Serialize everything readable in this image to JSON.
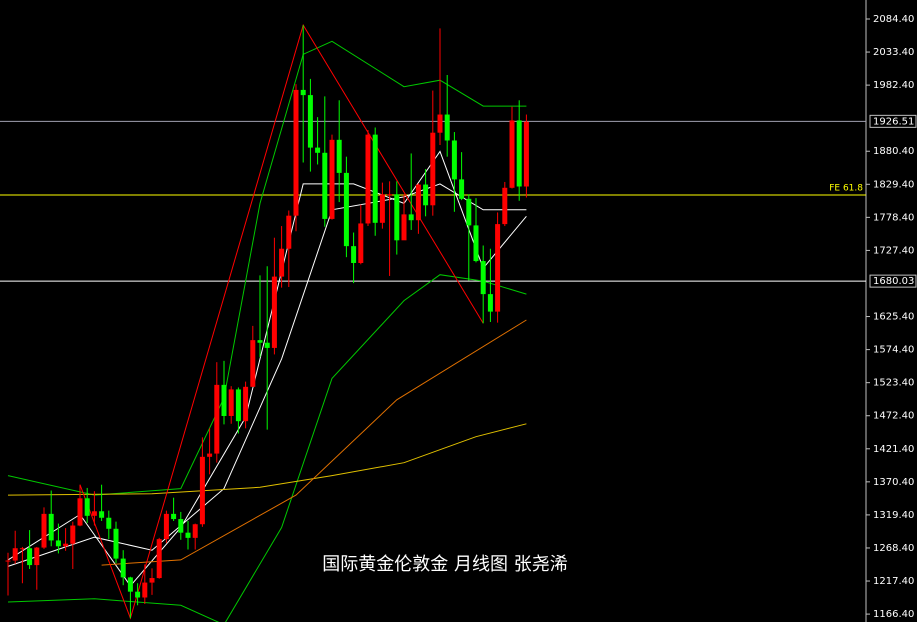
{
  "chart_data": {
    "type": "candlestick",
    "title": "国际黄金伦敦金  月线图  张尧浠",
    "ylim": [
      1154.2,
      2113.7
    ],
    "yticks": [
      {
        "value": 2084.4,
        "label": "2084.40"
      },
      {
        "value": 2033.4,
        "label": "2033.40"
      },
      {
        "value": 1982.4,
        "label": "1982.40"
      },
      {
        "value": 1880.4,
        "label": "1880.40"
      },
      {
        "value": 1829.4,
        "label": "1829.40"
      },
      {
        "value": 1778.4,
        "label": "1778.40"
      },
      {
        "value": 1727.4,
        "label": "1727.40"
      },
      {
        "value": 1625.4,
        "label": "1625.40"
      },
      {
        "value": 1574.4,
        "label": "1574.40"
      },
      {
        "value": 1523.4,
        "label": "1523.40"
      },
      {
        "value": 1472.4,
        "label": "1472.40"
      },
      {
        "value": 1421.4,
        "label": "1421.40"
      },
      {
        "value": 1370.4,
        "label": "1370.40"
      },
      {
        "value": 1319.4,
        "label": "1319.40"
      },
      {
        "value": 1268.4,
        "label": "1268.40"
      },
      {
        "value": 1217.4,
        "label": "1217.40"
      },
      {
        "value": 1166.4,
        "label": "1166.40"
      }
    ],
    "up_color": "#ff0000",
    "down_color": "#00ff00",
    "open": [
      1248,
      1249,
      1268,
      1268,
      1242,
      1269,
      1321,
      1280,
      1271,
      1275,
      1303,
      1345,
      1318,
      1325,
      1315,
      1298,
      1252,
      1223,
      1201,
      1192,
      1215,
      1222,
      1282,
      1321,
      1313,
      1292,
      1284,
      1305,
      1409,
      1414,
      1520,
      1472,
      1513,
      1464,
      1517,
      1589,
      1585,
      1577,
      1687,
      1730,
      1781,
      1975,
      1967,
      1886,
      1878,
      1776,
      1898,
      1847,
      1734,
      1708,
      1769,
      1906,
      1770,
      1814,
      1814,
      1743,
      1783,
      1774,
      1829,
      1797,
      1909,
      1937,
      1897,
      1837,
      1807,
      1766,
      1711,
      1660,
      1633,
      1768,
      1824,
      1928,
      1826
    ],
    "high": [
      1261,
      1295,
      1270,
      1296,
      1270,
      1331,
      1357,
      1306,
      1299,
      1309,
      1366,
      1361,
      1356,
      1366,
      1326,
      1309,
      1265,
      1224,
      1214,
      1243,
      1237,
      1284,
      1326,
      1346,
      1324,
      1310,
      1306,
      1439,
      1453,
      1555,
      1557,
      1518,
      1516,
      1525,
      1611,
      1689,
      1703,
      1747,
      1765,
      1789,
      1984,
      2075,
      1992,
      1933,
      1965,
      1906,
      1959,
      1872,
      1755,
      1798,
      1913,
      1917,
      1832,
      1834,
      1834,
      1814,
      1877,
      1831,
      1853,
      1974,
      2070,
      1998,
      1910,
      1879,
      1814,
      1808,
      1735,
      1730,
      1786,
      1833,
      1949,
      1959,
      1937
    ],
    "low": [
      1195,
      1244,
      1214,
      1236,
      1204,
      1267,
      1271,
      1260,
      1264,
      1236,
      1302,
      1307,
      1303,
      1310,
      1282,
      1245,
      1211,
      1160,
      1180,
      1182,
      1196,
      1221,
      1276,
      1310,
      1281,
      1266,
      1266,
      1301,
      1382,
      1400,
      1459,
      1460,
      1445,
      1453,
      1517,
      1563,
      1451,
      1567,
      1670,
      1671,
      1757,
      1863,
      1849,
      1860,
      1764,
      1775,
      1802,
      1717,
      1677,
      1706,
      1765,
      1750,
      1761,
      1688,
      1721,
      1746,
      1759,
      1753,
      1780,
      1781,
      1890,
      1872,
      1787,
      1805,
      1681,
      1709,
      1615,
      1617,
      1616,
      1765,
      1823,
      1804,
      1809
    ],
    "close": [
      1249,
      1268,
      1268,
      1242,
      1269,
      1321,
      1280,
      1271,
      1275,
      1303,
      1345,
      1318,
      1325,
      1315,
      1298,
      1252,
      1223,
      1201,
      1192,
      1215,
      1222,
      1282,
      1321,
      1313,
      1292,
      1284,
      1305,
      1409,
      1414,
      1520,
      1472,
      1513,
      1464,
      1517,
      1589,
      1585,
      1577,
      1687,
      1730,
      1781,
      1975,
      1967,
      1886,
      1878,
      1776,
      1898,
      1847,
      1734,
      1708,
      1769,
      1906,
      1770,
      1814,
      1814,
      1743,
      1783,
      1774,
      1829,
      1797,
      1909,
      1937,
      1897,
      1837,
      1807,
      1766,
      1711,
      1660,
      1633,
      1768,
      1824,
      1928,
      1826,
      1926
    ],
    "lines": [
      {
        "color": "#00c800",
        "x": [
          0,
          12,
          24,
          30,
          35,
          41,
          45,
          55,
          60,
          66,
          72
        ],
        "values": [
          1380,
          1350,
          1360,
          1500,
          1800,
          2030,
          2050,
          1980,
          1990,
          1950,
          1950
        ]
      },
      {
        "color": "#00c800",
        "x": [
          0,
          12,
          24,
          30,
          38,
          45,
          55,
          60,
          66,
          72
        ],
        "values": [
          1185,
          1190,
          1180,
          1150,
          1300,
          1530,
          1650,
          1690,
          1680,
          1660
        ]
      },
      {
        "color": "#ffffff",
        "x": [
          0,
          12,
          20,
          30,
          38,
          45,
          55,
          60,
          66,
          72
        ],
        "values": [
          1240,
          1285,
          1265,
          1360,
          1560,
          1790,
          1810,
          1830,
          1790,
          1790
        ]
      },
      {
        "color": "#ffffff",
        "x": [
          0,
          10,
          17,
          24,
          33,
          41,
          48,
          55,
          60,
          66,
          72
        ],
        "values": [
          1250,
          1320,
          1210,
          1300,
          1470,
          1830,
          1830,
          1800,
          1880,
          1700,
          1780
        ]
      },
      {
        "color": "#e0c000",
        "x": [
          0,
          20,
          35,
          45,
          55,
          65,
          72
        ],
        "values": [
          1350,
          1352,
          1362,
          1380,
          1400,
          1440,
          1460
        ]
      },
      {
        "color": "#e07000",
        "x": [
          13,
          24,
          40,
          54,
          72
        ],
        "values": [
          1242,
          1250,
          1350,
          1497,
          1620
        ]
      },
      {
        "color": "#ff0000",
        "x": [
          10,
          17,
          41,
          66
        ],
        "values": [
          1366,
          1160,
          2075,
          1615
        ]
      }
    ],
    "hlines": [
      {
        "value": 1926.51,
        "label": "1926.51",
        "color": "#a0a0b0",
        "boxed": true
      },
      {
        "value": 1812.9,
        "label": "FE 61.8",
        "color": "#ffff00",
        "boxed": false
      },
      {
        "value": 1680.03,
        "label": "1680.03",
        "color": "#ffffff",
        "boxed": true
      }
    ]
  }
}
